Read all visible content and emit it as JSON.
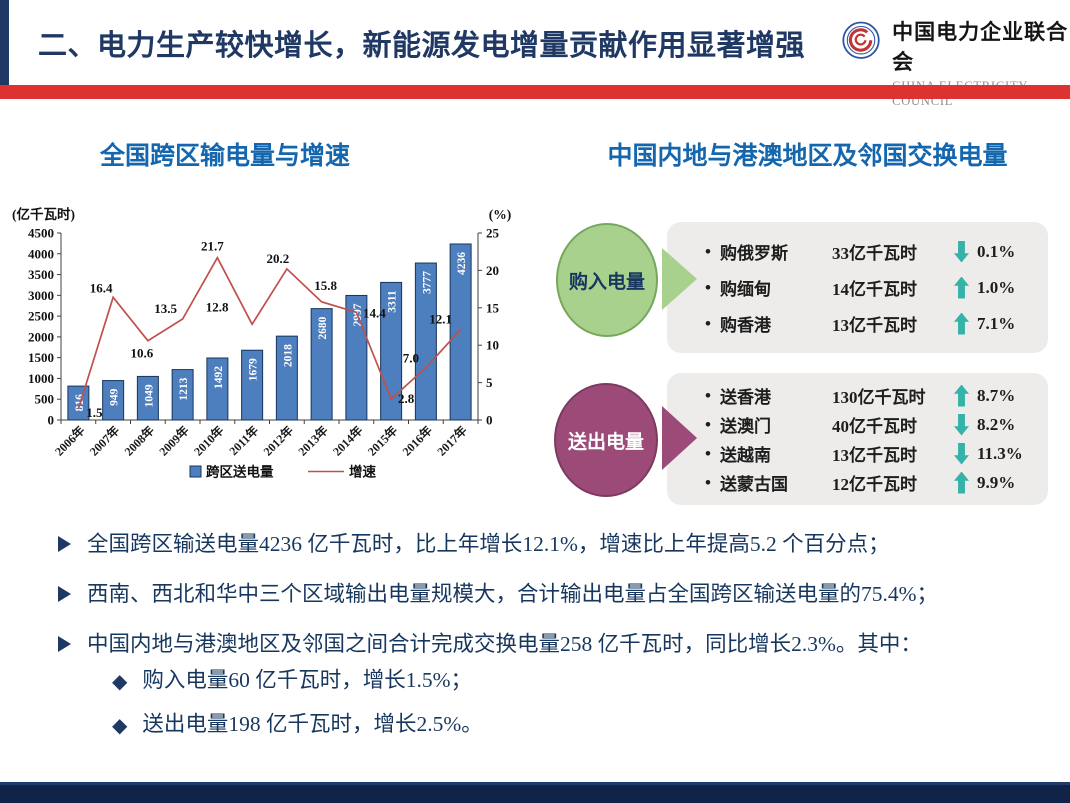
{
  "slide": {
    "title": "二、电力生产较快增长，新能源发电增量贡献作用显著增强",
    "logo_cn": "中国电力企业联合会",
    "logo_en": "CHINA ELECTRICITY COUNCIL"
  },
  "colors": {
    "navy": "#1F3864",
    "red_bar": "#DC3232",
    "panel_title_blue": "#1467AE",
    "bar_fill": "#4D7EBD",
    "line_red": "#C0504D",
    "green_circle": "#A9D18E",
    "green_border": "#76A75C",
    "purple_circle": "#9C4A78",
    "purple_border": "#7D3A60",
    "teal_arrow": "#35B3A9",
    "box_grey": "#EDECEA",
    "footer_navy": "#0F2448"
  },
  "left_panel": {
    "title": "全国跨区输电量与增速"
  },
  "chart_data": {
    "type": "bar",
    "subtype": "bar+line combo, line on secondary axis",
    "title": "全国跨区输电量与增速",
    "categories": [
      "2006年",
      "2007年",
      "2008年",
      "2009年",
      "2010年",
      "2011年",
      "2012年",
      "2013年",
      "2014年",
      "2015年",
      "2016年",
      "2017年"
    ],
    "series": [
      {
        "name": "跨区送电量",
        "type": "bar",
        "axis": "left",
        "color": "#4D7EBD",
        "values": [
          816,
          949,
          1049,
          1213,
          1492,
          1679,
          2018,
          2680,
          2997,
          3311,
          3777,
          4236
        ]
      },
      {
        "name": "增速",
        "type": "line",
        "axis": "right",
        "color": "#C0504D",
        "values": [
          1.5,
          16.4,
          10.6,
          13.5,
          21.7,
          12.8,
          20.2,
          15.8,
          14.4,
          2.8,
          7.0,
          12.1
        ]
      }
    ],
    "y_left_axis": {
      "title": "(亿千瓦时)",
      "min": 0,
      "max": 4500,
      "step": 500
    },
    "y_right_axis": {
      "title": "(%)",
      "min": 0,
      "max": 25,
      "step": 5
    },
    "legend": [
      {
        "label": "跨区送电量",
        "swatch": "square"
      },
      {
        "label": "增速",
        "swatch": "line"
      }
    ],
    "grid": false,
    "legend_position": "bottom"
  },
  "right_panel": {
    "title": "中国内地与港澳地区及邻国交换电量",
    "groups": [
      {
        "circle_label": "购入电量",
        "rows": [
          {
            "label": "购俄罗斯",
            "value": "33亿千瓦时",
            "direction": "down",
            "pct": "0.1%"
          },
          {
            "label": "购缅甸",
            "value": "14亿千瓦时",
            "direction": "up",
            "pct": "1.0%"
          },
          {
            "label": "购香港",
            "value": "13亿千瓦时",
            "direction": "up",
            "pct": "7.1%"
          }
        ]
      },
      {
        "circle_label": "送出电量",
        "rows": [
          {
            "label": "送香港",
            "value": "130亿千瓦时",
            "direction": "up",
            "pct": "8.7%"
          },
          {
            "label": "送澳门",
            "value": "40亿千瓦时",
            "direction": "down",
            "pct": "8.2%"
          },
          {
            "label": "送越南",
            "value": "13亿千瓦时",
            "direction": "down",
            "pct": "11.3%"
          },
          {
            "label": "送蒙古国",
            "value": "12亿千瓦时",
            "direction": "up",
            "pct": "9.9%"
          }
        ]
      }
    ]
  },
  "bullets": [
    {
      "text": "全国跨区输送电量4236 亿千瓦时，比上年增长12.1%，增速比上年提高5.2 个百分点；"
    },
    {
      "text": "西南、西北和华中三个区域输出电量规模大，合计输出电量占全国跨区输送电量的75.4%；"
    },
    {
      "text": "中国内地与港澳地区及邻国之间合计完成交换电量258 亿千瓦时，同比增长2.3%。其中："
    }
  ],
  "sub_bullets": [
    {
      "text": "购入电量60 亿千瓦时，增长1.5%；"
    },
    {
      "text": "送出电量198 亿千瓦时，增长2.5%。"
    }
  ]
}
